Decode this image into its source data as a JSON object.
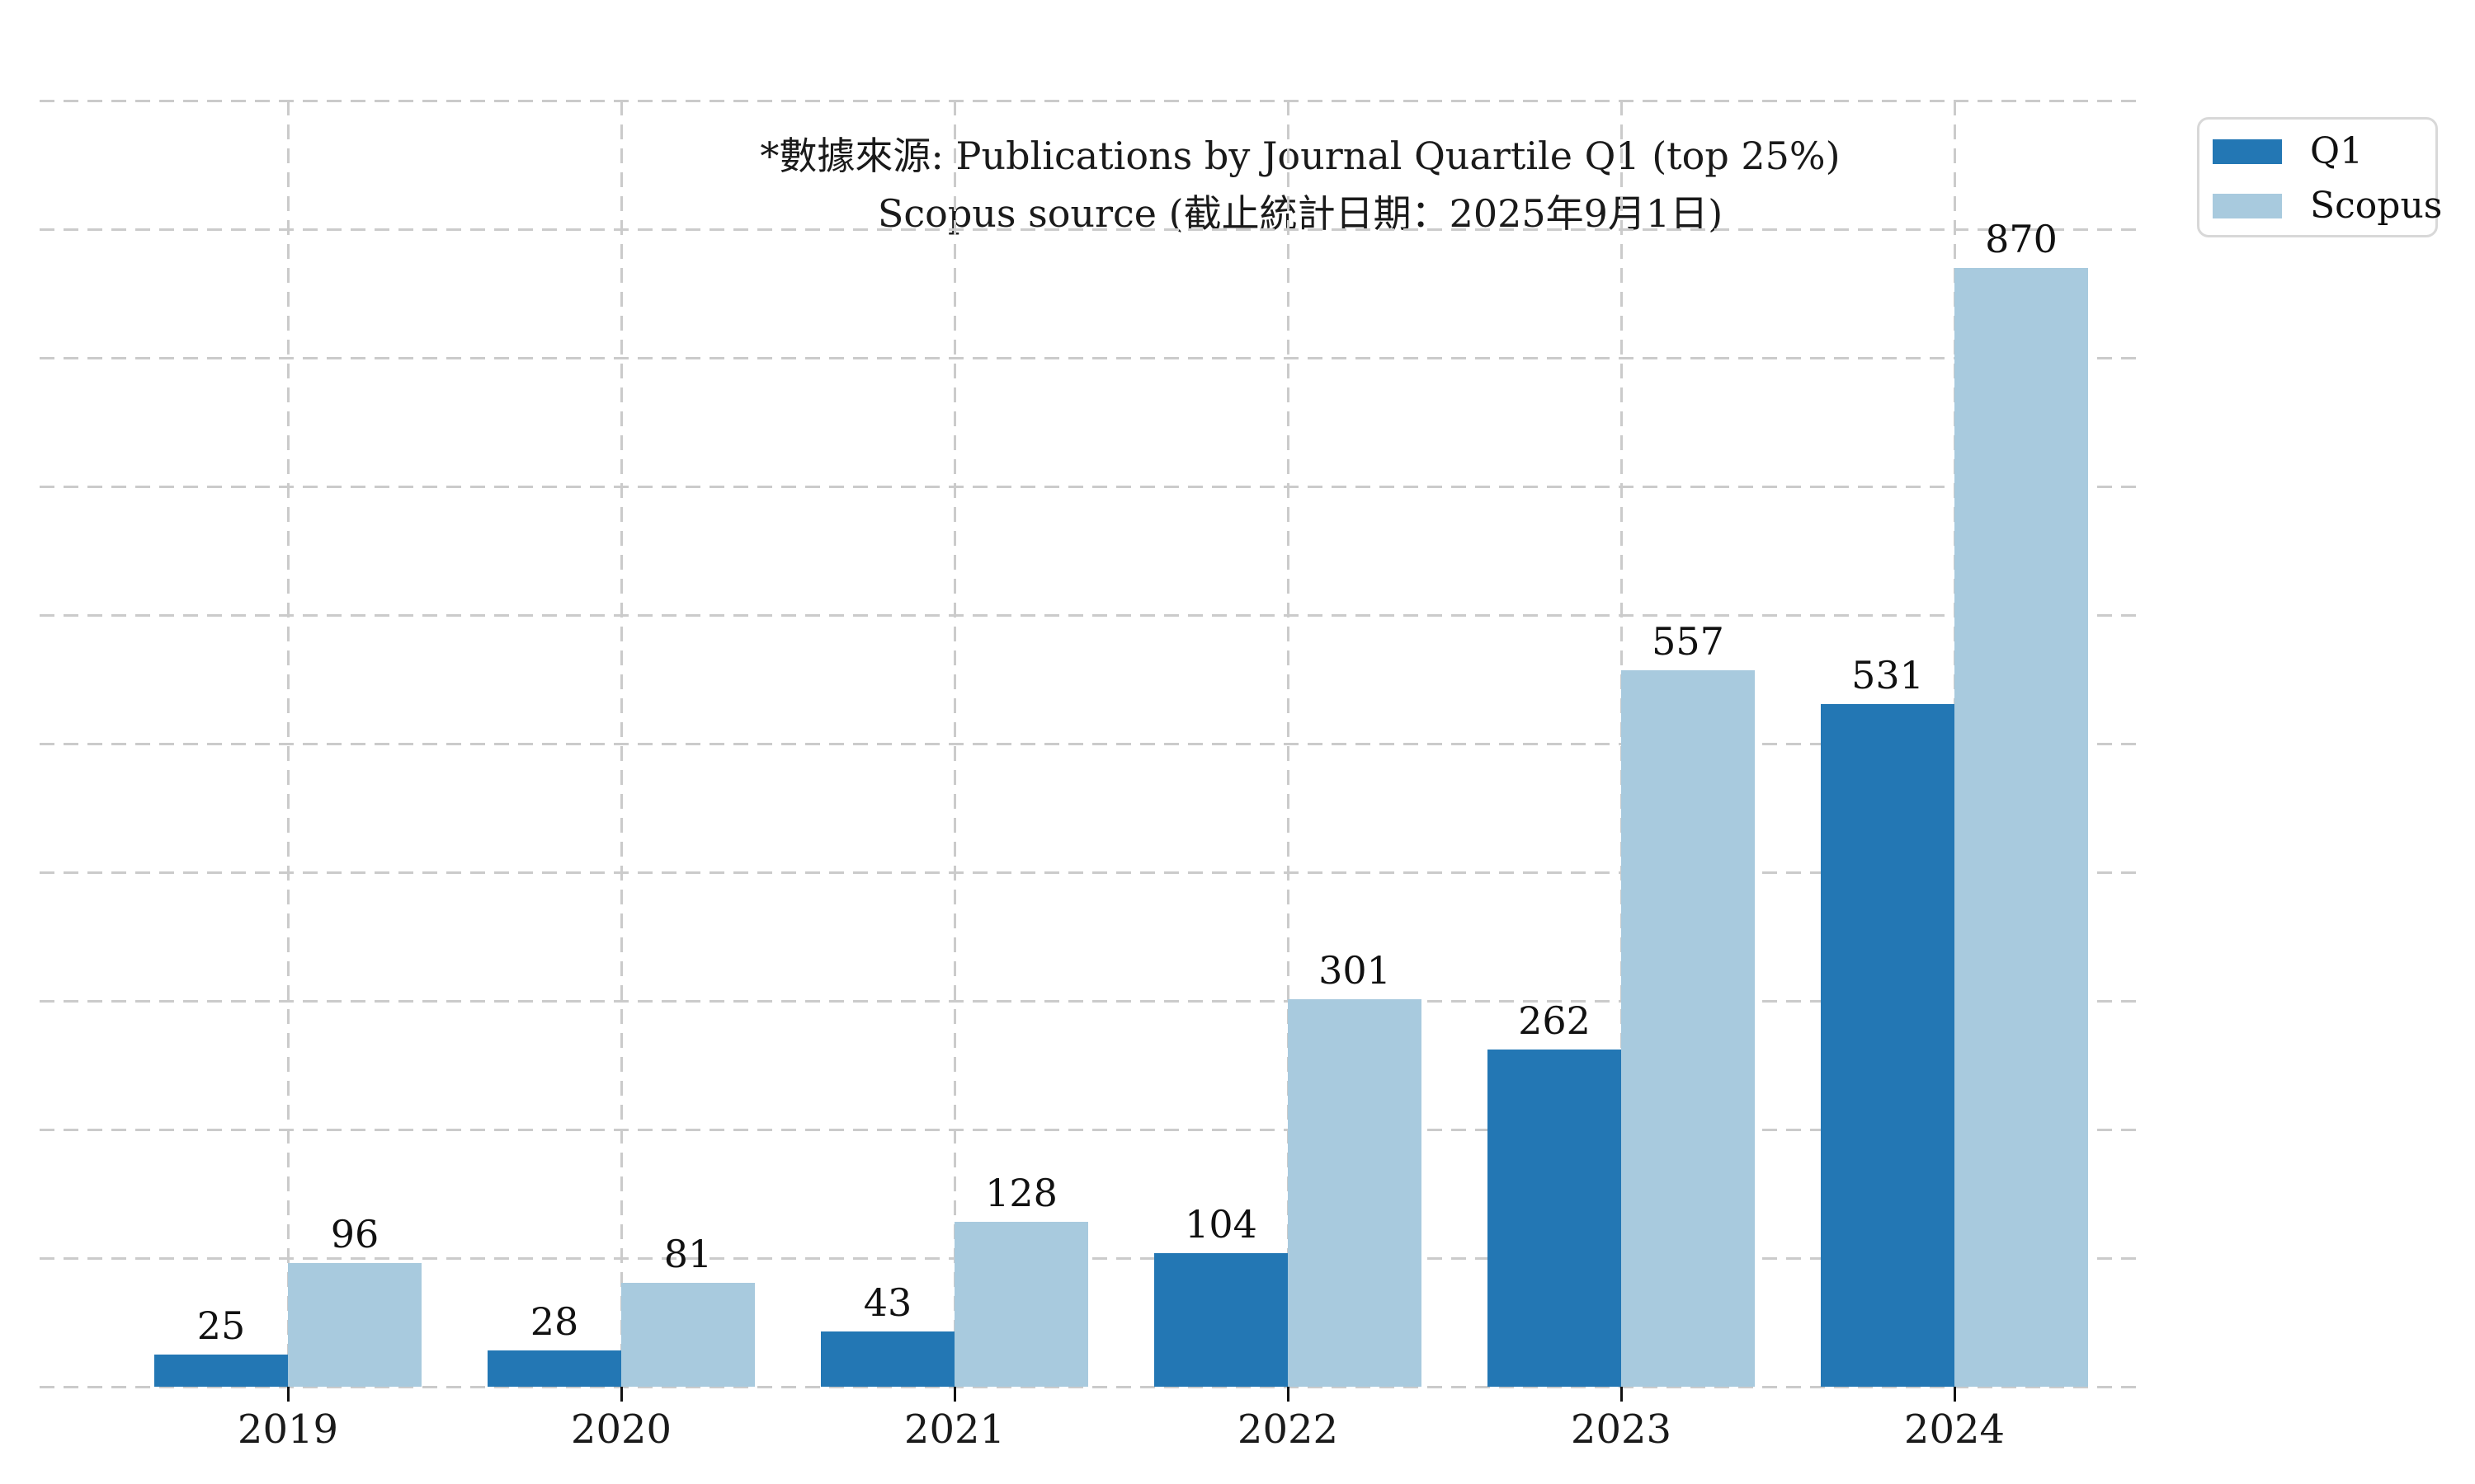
{
  "chart_data": {
    "type": "bar",
    "categories": [
      "2019",
      "2020",
      "2021",
      "2022",
      "2023",
      "2024"
    ],
    "series": [
      {
        "name": "Q1",
        "color": "#2377b4",
        "values": [
          25,
          28,
          43,
          104,
          262,
          531
        ]
      },
      {
        "name": "Scopus",
        "color": "#a8cade",
        "values": [
          96,
          81,
          128,
          301,
          557,
          870
        ]
      }
    ],
    "title_line1": "*數據來源: Publications by Journal Quartile Q1 (top 25%)",
    "title_line2": "Scopus source (截止統計日期：2025年9月1日)",
    "xlabel": "",
    "ylabel": "",
    "ylim": [
      0,
      1000
    ],
    "y_grid_step": 100,
    "y_tick_labels_visible": false,
    "grid": "dashed",
    "legend_position": "upper right"
  },
  "legend": {
    "items": [
      {
        "label": "Q1",
        "color": "#2377b4"
      },
      {
        "label": "Scopus",
        "color": "#a8cade"
      }
    ]
  },
  "colors": {
    "background": "#ffffff",
    "grid": "#cbcbcb",
    "text": "#1a1a1a",
    "q1_bar": "#2377b4",
    "scopus_bar": "#a8cade"
  }
}
